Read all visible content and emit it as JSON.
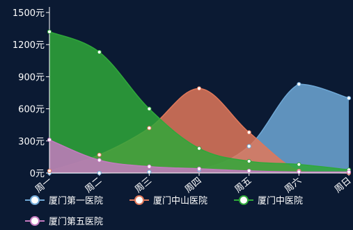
{
  "chart_data": {
    "type": "area",
    "categories": [
      "周一",
      "周二",
      "周三",
      "周四",
      "周五",
      "周六",
      "周日"
    ],
    "ylim": [
      0,
      1500
    ],
    "y_ticks": [
      "0元",
      "300元",
      "600元",
      "900元",
      "1200元",
      "1500元"
    ],
    "smooth": true,
    "grid": false,
    "legend_position": "bottom",
    "series": [
      {
        "name": "厦门第一医院",
        "values": [
          0,
          0,
          10,
          30,
          250,
          830,
          700
        ],
        "color": "#6fa8d6"
      },
      {
        "name": "厦门中山医院",
        "values": [
          20,
          170,
          420,
          790,
          380,
          20,
          0
        ],
        "color": "#e0785a"
      },
      {
        "name": "厦门中医院",
        "values": [
          1320,
          1130,
          600,
          230,
          110,
          80,
          30
        ],
        "color": "#2fa83a"
      },
      {
        "name": "厦门第五医院",
        "values": [
          310,
          120,
          60,
          40,
          20,
          10,
          10
        ],
        "color": "#c47ac0"
      }
    ]
  }
}
